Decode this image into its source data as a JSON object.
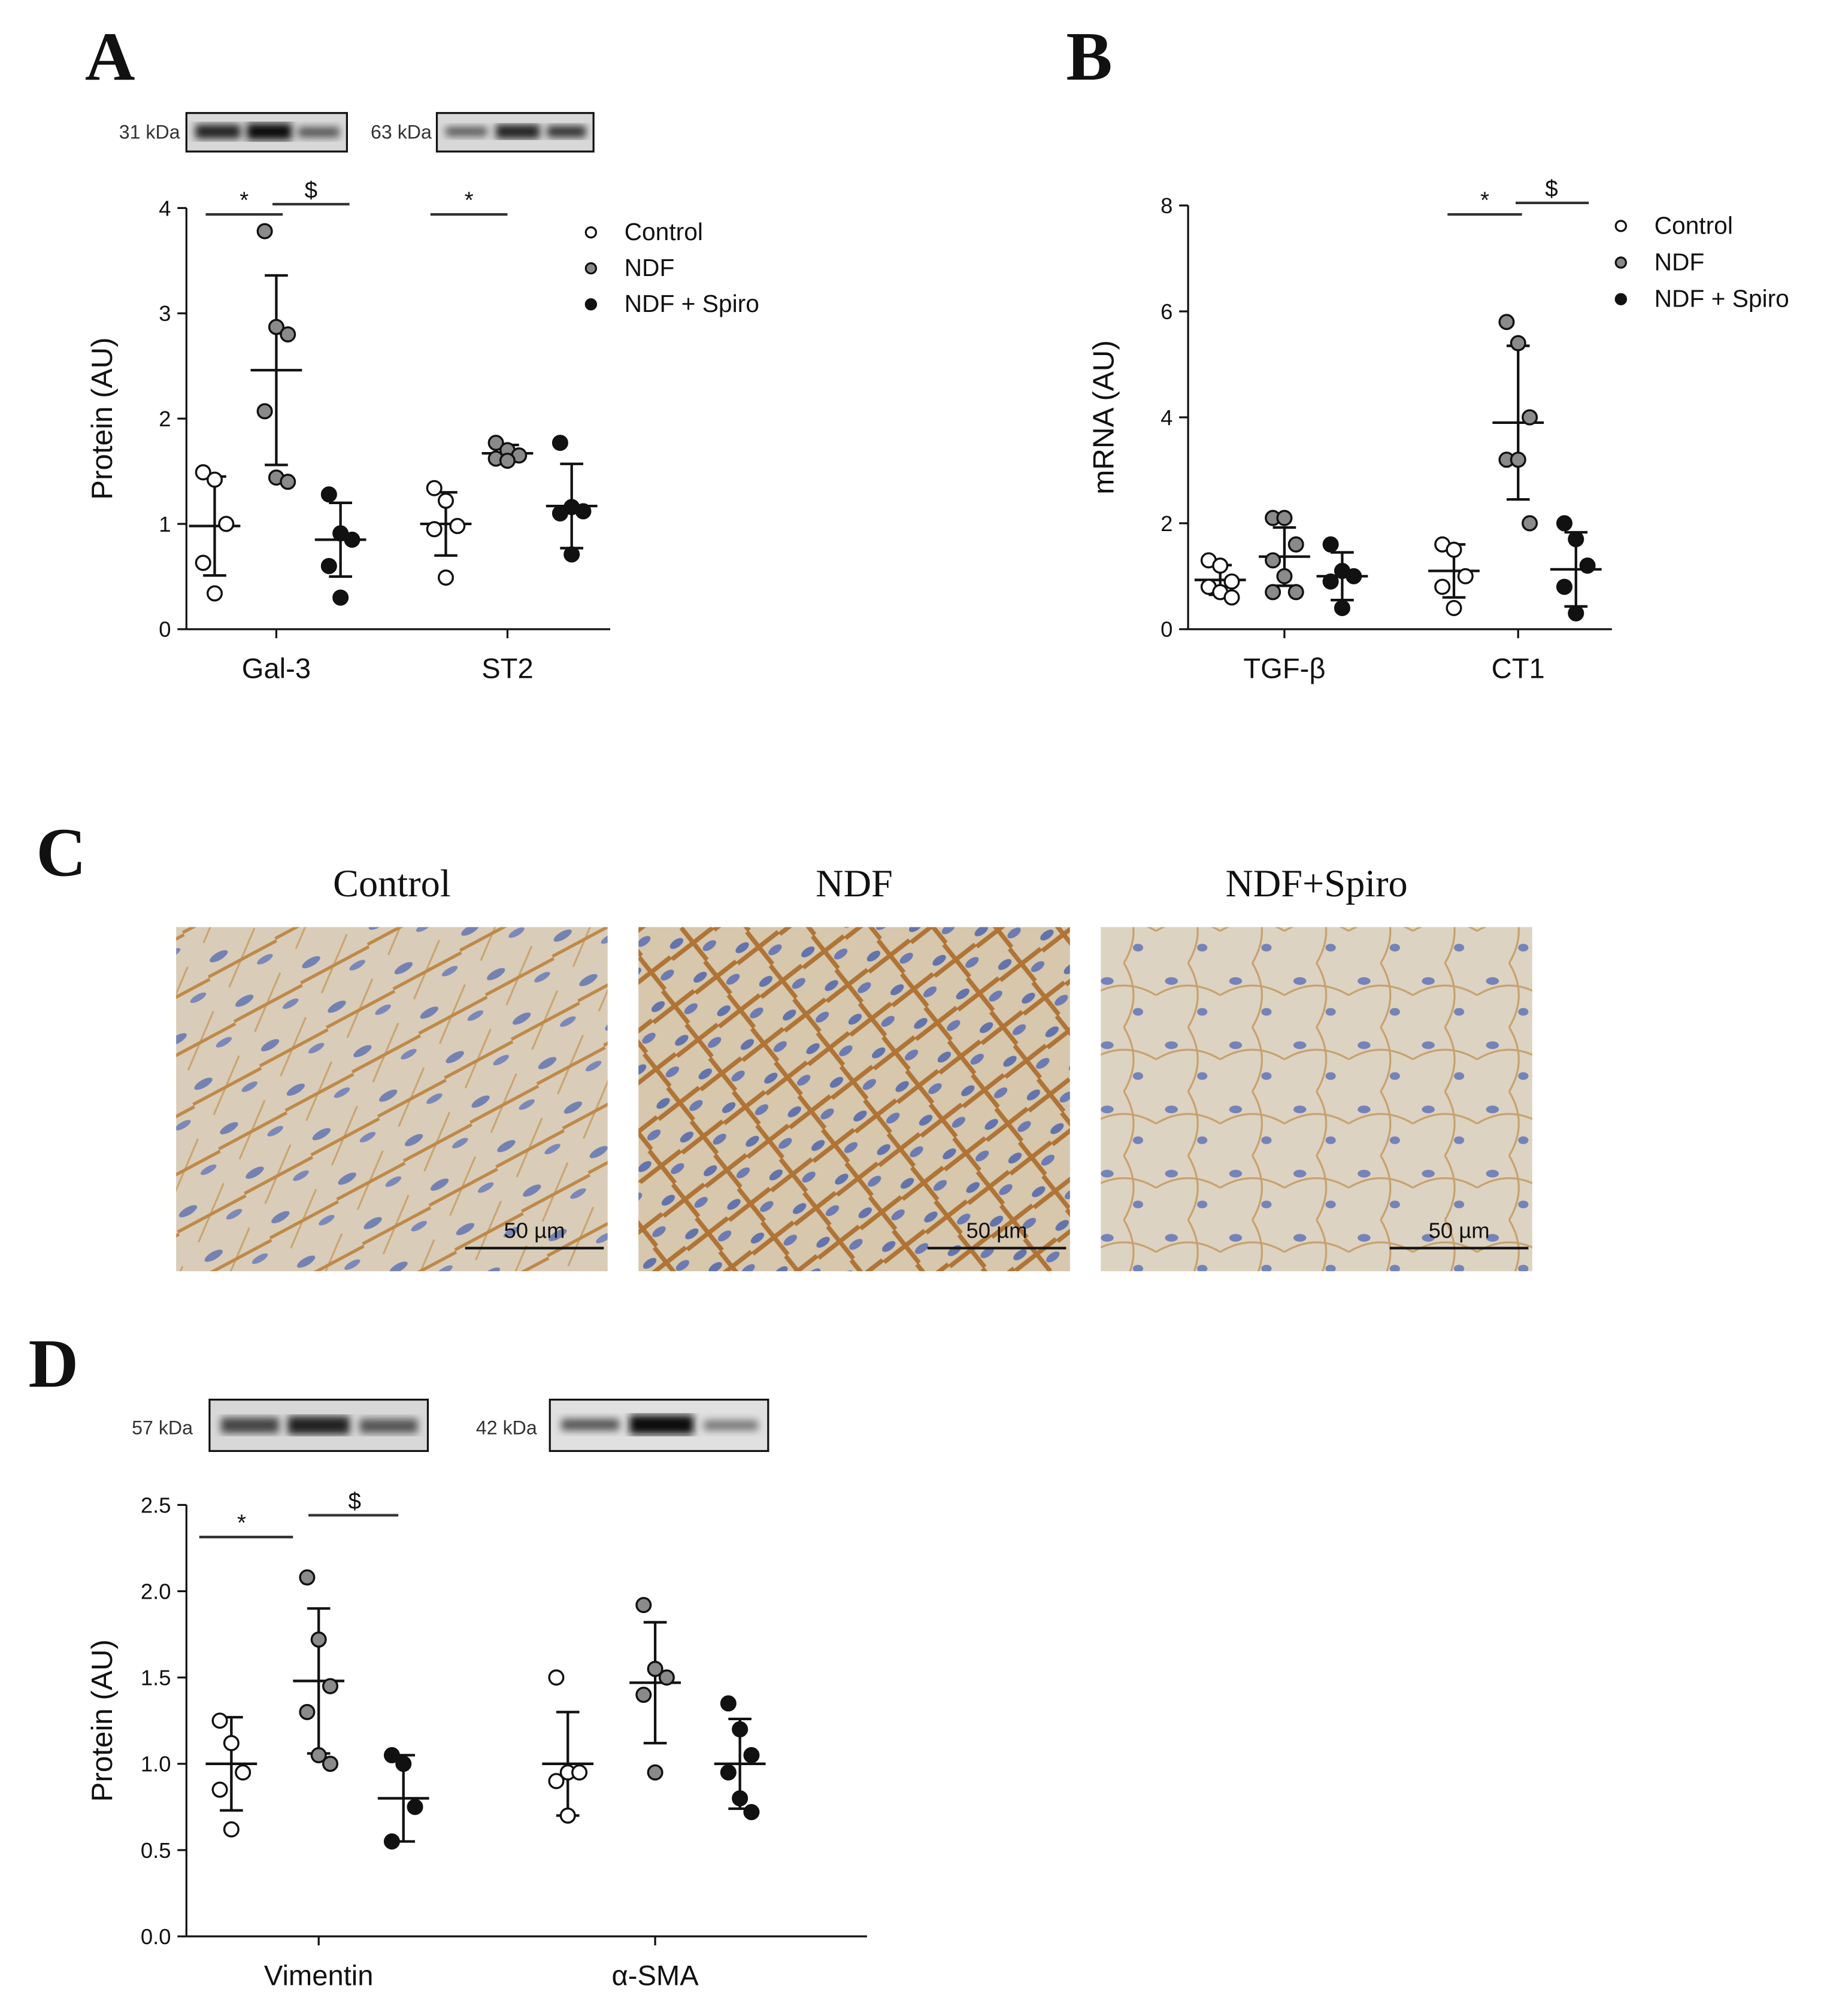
{
  "panel_labels": [
    "A",
    "B",
    "C",
    "D"
  ],
  "histology": {
    "titles": [
      "Control",
      "NDF",
      "NDF+Spiro"
    ],
    "scale_bar": "50 µm"
  },
  "chart_data": [
    {
      "type": "dot_plot",
      "ylabel": "Protein (AU)",
      "categories": [
        "Gal-3",
        "ST2"
      ],
      "ylim": [
        0,
        4
      ],
      "yticks": [
        0,
        1,
        2,
        3,
        4
      ],
      "legend": true,
      "blot_labels": [
        "31 kDa",
        "63 kDa"
      ],
      "significance": [
        "*",
        "$",
        "*"
      ],
      "series": [
        {
          "name": "Control",
          "color": "#ffffff",
          "values": [
            [
              1.49,
              1.42,
              1.0,
              0.63,
              0.34
            ],
            [
              1.34,
              1.22,
              0.98,
              0.95,
              0.49
            ]
          ],
          "mean": [
            0.98,
            1.0
          ],
          "sd": [
            0.47,
            0.3
          ]
        },
        {
          "name": "NDF",
          "color": "#8a8a8a",
          "values": [
            [
              3.78,
              2.87,
              2.8,
              2.07,
              1.44,
              1.4
            ],
            [
              1.77,
              1.7,
              1.65,
              1.62,
              1.6
            ]
          ],
          "mean": [
            2.46,
            1.67
          ],
          "sd": [
            0.9,
            0.08
          ]
        },
        {
          "name": "NDF + Spiro",
          "color": "#111111",
          "values": [
            [
              1.28,
              0.91,
              0.85,
              0.6,
              0.3
            ],
            [
              1.77,
              1.16,
              1.12,
              1.1,
              0.71
            ]
          ],
          "mean": [
            0.85,
            1.17
          ],
          "sd": [
            0.35,
            0.4
          ]
        }
      ]
    },
    {
      "type": "dot_plot",
      "ylabel": "mRNA (AU)",
      "categories": [
        "TGF-β",
        "CT1"
      ],
      "ylim": [
        0,
        8
      ],
      "yticks": [
        0,
        2,
        4,
        6,
        8
      ],
      "legend": true,
      "significance": [
        "*",
        "$"
      ],
      "series": [
        {
          "name": "Control",
          "color": "#ffffff",
          "values": [
            [
              1.3,
              1.2,
              0.9,
              0.8,
              0.7,
              0.6
            ],
            [
              1.6,
              1.5,
              1.0,
              0.8,
              0.4
            ]
          ],
          "mean": [
            0.93,
            1.1
          ],
          "sd": [
            0.28,
            0.5
          ]
        },
        {
          "name": "NDF",
          "color": "#8a8a8a",
          "values": [
            [
              2.1,
              2.1,
              1.6,
              1.3,
              1.0,
              0.7,
              0.7
            ],
            [
              5.8,
              5.4,
              4.0,
              3.2,
              3.2,
              2.0
            ]
          ],
          "mean": [
            1.37,
            3.9
          ],
          "sd": [
            0.55,
            1.45
          ]
        },
        {
          "name": "NDF + Spiro",
          "color": "#111111",
          "values": [
            [
              1.6,
              1.1,
              1.0,
              0.9,
              0.4
            ],
            [
              2.0,
              1.7,
              1.2,
              0.8,
              0.3
            ]
          ],
          "mean": [
            1.0,
            1.13
          ],
          "sd": [
            0.45,
            0.7
          ]
        }
      ]
    },
    {
      "type": "dot_plot",
      "ylabel": "Protein (AU)",
      "categories": [
        "Vimentin",
        "α-SMA"
      ],
      "ylim": [
        0,
        2.5
      ],
      "legend": false,
      "yticks": [
        {
          "value": 0,
          "label": "0.0"
        },
        {
          "value": 0.5,
          "label": "0.5"
        },
        {
          "value": 1,
          "label": "1.0"
        },
        {
          "value": 1.5,
          "label": "1.5"
        },
        {
          "value": 2,
          "label": "2.0"
        },
        {
          "value": 2.5,
          "label": "2.5"
        }
      ],
      "blot_labels": [
        "57 kDa",
        "42 kDa"
      ],
      "significance": [
        "*",
        "$"
      ],
      "series": [
        {
          "color": "#ffffff",
          "values": [
            [
              1.25,
              1.12,
              0.95,
              0.85,
              0.62
            ],
            [
              1.5,
              0.95,
              0.95,
              0.9,
              0.7
            ]
          ],
          "mean": [
            1.0,
            1.0
          ],
          "sd": [
            0.27,
            0.3
          ]
        },
        {
          "color": "#8a8a8a",
          "values": [
            [
              2.08,
              1.72,
              1.45,
              1.3,
              1.05,
              1.0
            ],
            [
              1.92,
              1.55,
              1.5,
              1.4,
              0.95
            ]
          ],
          "mean": [
            1.48,
            1.47
          ],
          "sd": [
            0.42,
            0.35
          ]
        },
        {
          "color": "#111111",
          "values": [
            [
              1.05,
              1.0,
              0.75,
              0.55
            ],
            [
              1.35,
              1.2,
              1.05,
              0.95,
              0.8,
              0.72
            ]
          ],
          "mean": [
            0.8,
            1.0
          ],
          "sd": [
            0.25,
            0.26
          ]
        }
      ]
    }
  ]
}
